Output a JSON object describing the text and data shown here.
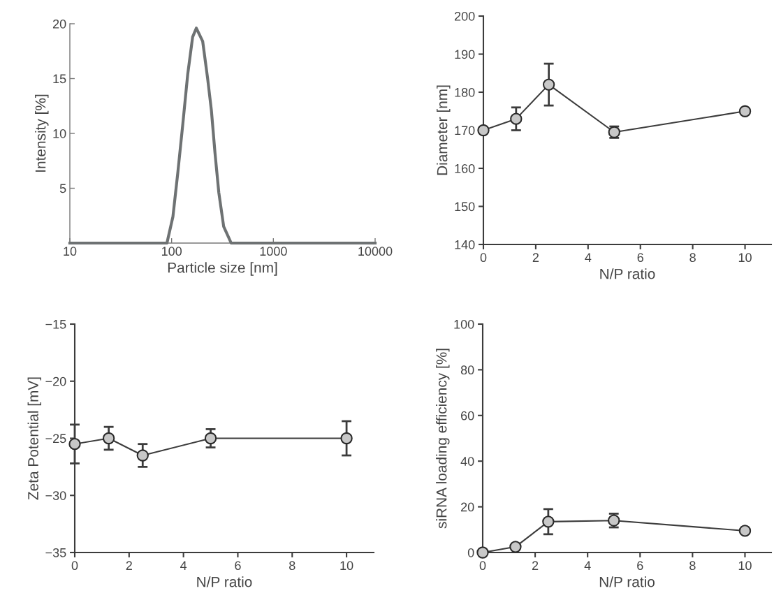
{
  "chart_data": [
    {
      "type": "line",
      "xlabel": "Particle size [nm]",
      "ylabel": "Intensity [%]",
      "log": "x",
      "xlim": [
        10,
        10000
      ],
      "xticks": [
        10,
        100,
        1000,
        10000
      ],
      "ylim": [
        0,
        20
      ],
      "yticks": [
        5,
        10,
        15,
        20
      ],
      "marker": "none",
      "series": [
        {
          "color": "#6e7273",
          "x": [
            10,
            50,
            90,
            92,
            103,
            115,
            129,
            144,
            161,
            175,
            202,
            226,
            246,
            267,
            291,
            325,
            385,
            1000,
            10000
          ],
          "values": [
            0,
            0,
            0,
            0.4,
            2.4,
            6.4,
            10.9,
            15.4,
            18.8,
            19.6,
            18.4,
            15,
            12.1,
            8.2,
            4.6,
            1.5,
            0,
            0,
            0
          ]
        }
      ]
    },
    {
      "type": "line",
      "xlabel": "N/P ratio",
      "ylabel": "Diameter [nm]",
      "xlim": [
        0,
        11
      ],
      "xticks": [
        0,
        2,
        4,
        6,
        8,
        10
      ],
      "ylim": [
        140,
        200
      ],
      "yticks": [
        140,
        150,
        160,
        170,
        180,
        190,
        200
      ],
      "marker": "circle",
      "series": [
        {
          "color": "#3c3c3c",
          "x": [
            0,
            1.25,
            2.5,
            5,
            10
          ],
          "values": [
            170,
            173,
            182,
            169.5,
            175
          ],
          "errors": [
            null,
            3,
            5.5,
            1.5,
            null
          ]
        }
      ]
    },
    {
      "type": "line",
      "xlabel": "N/P ratio",
      "ylabel": "Zeta Potential [mV]",
      "xlim": [
        0,
        11
      ],
      "xticks": [
        0,
        2,
        4,
        6,
        8,
        10
      ],
      "ylim": [
        -35,
        -15
      ],
      "yticks": [
        -35,
        -30,
        -25,
        -20,
        -15
      ],
      "marker": "circle",
      "series": [
        {
          "color": "#3c3c3c",
          "x": [
            0,
            1.25,
            2.5,
            5,
            10
          ],
          "values": [
            -25.5,
            -25,
            -26.5,
            -25,
            -25
          ],
          "errors": [
            1.7,
            1,
            1,
            0.8,
            1.5
          ]
        }
      ]
    },
    {
      "type": "line",
      "xlabel": "N/P ratio",
      "ylabel": "siRNA loading efficiency [%]",
      "xlim": [
        0,
        11
      ],
      "xticks": [
        0,
        2,
        4,
        6,
        8,
        10
      ],
      "ylim": [
        0,
        100
      ],
      "yticks": [
        0,
        20,
        40,
        60,
        80,
        100
      ],
      "marker": "circle",
      "series": [
        {
          "color": "#3c3c3c",
          "x": [
            0,
            1.25,
            2.5,
            5,
            10
          ],
          "values": [
            0,
            2.5,
            13.5,
            14,
            9.5
          ],
          "errors": [
            null,
            null,
            5.5,
            3,
            null
          ]
        }
      ]
    }
  ]
}
